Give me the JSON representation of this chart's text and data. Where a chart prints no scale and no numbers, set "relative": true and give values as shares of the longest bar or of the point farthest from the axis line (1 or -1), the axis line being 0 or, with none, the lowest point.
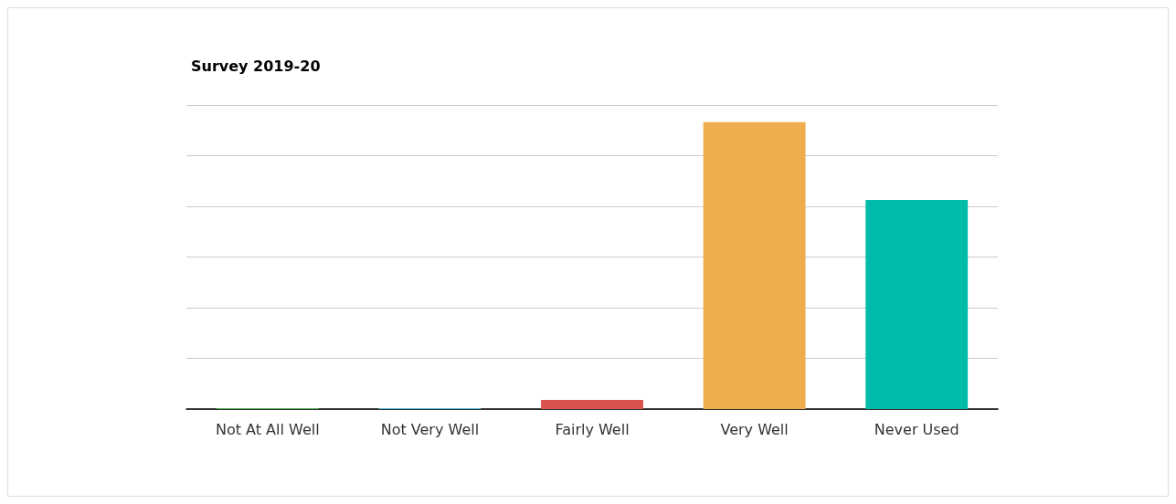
{
  "chart_data": {
    "type": "bar",
    "title": "Survey 2019-20",
    "relative": true,
    "grid": true,
    "categories": [
      "Not At All Well",
      "Not Very Well",
      "Fairly Well",
      "Very Well",
      "Never Used"
    ],
    "values": [
      0.003,
      0.003,
      0.032,
      1,
      0.729
    ],
    "colors": [
      "#5cb85c",
      "#5bc0de",
      "#d9534f",
      "#f0ad4e",
      "#00bcab"
    ]
  }
}
